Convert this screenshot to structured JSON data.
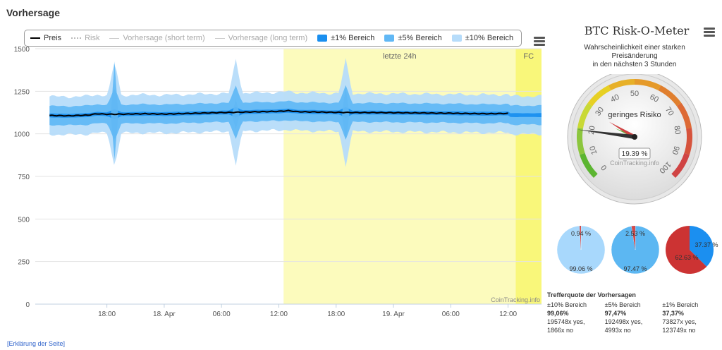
{
  "page": {
    "title": "Vorhersage",
    "explain_link": "[Erklärung der Seite]"
  },
  "legend": [
    {
      "label": "Preis",
      "kind": "line",
      "color": "#000000",
      "muted": false
    },
    {
      "label": "Risk",
      "kind": "dot",
      "color": "#bbbbbb",
      "muted": true
    },
    {
      "label": "Vorhersage (short term)",
      "kind": "thin",
      "color": "#cccccc",
      "muted": true
    },
    {
      "label": "Vorhersage (long term)",
      "kind": "thin",
      "color": "#cccccc",
      "muted": true
    },
    {
      "label": "±1% Bereich",
      "kind": "box",
      "color": "#1a8fef",
      "muted": false
    },
    {
      "label": "±5% Bereich",
      "kind": "box",
      "color": "#61b8f5",
      "muted": false
    },
    {
      "label": "±10% Bereich",
      "kind": "box",
      "color": "#b6dcfa",
      "muted": false
    }
  ],
  "chart_data": {
    "type": "area",
    "ylim": [
      0,
      1500
    ],
    "y_ticks": [
      0,
      250,
      500,
      750,
      1000,
      1250,
      1500
    ],
    "x_ticks": [
      "18:00",
      "18. Apr",
      "06:00",
      "12:00",
      "18:00",
      "19. Apr",
      "06:00",
      "12:00"
    ],
    "x_tick_hours": [
      6,
      12,
      18,
      24,
      30,
      36,
      42,
      48
    ],
    "x_range_hours": [
      -1.5,
      51.5
    ],
    "price_end_hour": 48,
    "highlight_regions": [
      {
        "label": "letzte 24h",
        "from_hour": 24.5,
        "to_hour": 48.8,
        "color": "#fcfbbd"
      },
      {
        "label": "FC",
        "from_hour": 48.8,
        "to_hour": 51.5,
        "color": "#f9f77a"
      }
    ],
    "price": {
      "name": "Preis",
      "hours": [
        0,
        2,
        4,
        5,
        6,
        8,
        10,
        12,
        14,
        16,
        18,
        20,
        22,
        24,
        25,
        26,
        28,
        30,
        32,
        34,
        36,
        38,
        40,
        42,
        44,
        46,
        48
      ],
      "values": [
        1108,
        1106,
        1110,
        1118,
        1115,
        1116,
        1118,
        1116,
        1119,
        1122,
        1125,
        1127,
        1130,
        1132,
        1136,
        1130,
        1128,
        1126,
        1125,
        1125,
        1124,
        1123,
        1122,
        1121,
        1119,
        1118,
        1120
      ]
    },
    "bands": [
      {
        "name": "±10% Bereich",
        "pct": 10,
        "color": "#b6dcfa"
      },
      {
        "name": "±5% Bereich",
        "pct": 5,
        "color": "#61b8f5"
      },
      {
        "name": "±1% Bereich",
        "pct": 1,
        "color": "#1a8fef"
      }
    ],
    "spikes": [
      {
        "hour": 6.8,
        "high": 1425,
        "low": 850
      },
      {
        "hour": 31,
        "high": 1270,
        "low": 970
      },
      {
        "hour": 19.5,
        "high": 1200,
        "low": 1030
      }
    ],
    "annotations": [
      "letzte 24h",
      "FC"
    ],
    "credit": "CoinTracking.info"
  },
  "gauge": {
    "title": "BTC Risk-O-Meter",
    "subtitle_lines": [
      "Wahrscheinlichkeit einer starken",
      "Preisänderung",
      "in den nächsten 3 Stunden"
    ],
    "value": 19.39,
    "value_label": "19.39 %",
    "risk_label": "geringes Risiko",
    "credit": "CoinTracking.info",
    "min": 0,
    "max": 100,
    "ticks": [
      "0",
      "10",
      "20",
      "30",
      "40",
      "50",
      "60",
      "70",
      "80",
      "90",
      "100"
    ],
    "bands": [
      {
        "from": 0,
        "to": 10,
        "color": "#5cb531"
      },
      {
        "from": 10,
        "to": 20,
        "color": "#8cc63e"
      },
      {
        "from": 20,
        "to": 30,
        "color": "#c9d936"
      },
      {
        "from": 30,
        "to": 40,
        "color": "#e7d024"
      },
      {
        "from": 40,
        "to": 50,
        "color": "#e7b028"
      },
      {
        "from": 50,
        "to": 60,
        "color": "#e59a2a"
      },
      {
        "from": 60,
        "to": 70,
        "color": "#e07f2e"
      },
      {
        "from": 70,
        "to": 80,
        "color": "#dd6a35"
      },
      {
        "from": 80,
        "to": 90,
        "color": "#d6533c"
      },
      {
        "from": 90,
        "to": 100,
        "color": "#d04444"
      }
    ]
  },
  "pies": [
    {
      "hit": 99.06,
      "miss": 0.94,
      "hit_label": "99.06 %",
      "miss_label": "0.94 %",
      "hit_color": "#a8d8fc",
      "miss_color": "#d24a4a"
    },
    {
      "hit": 97.47,
      "miss": 2.53,
      "hit_label": "97.47 %",
      "miss_label": "2.53 %",
      "hit_color": "#5cb7f2",
      "miss_color": "#d24a4a"
    },
    {
      "hit": 37.37,
      "miss": 62.63,
      "hit_label": "37.37 %",
      "miss_label": "62.63 %",
      "hit_color": "#1b8ff0",
      "miss_color": "#cc3333"
    }
  ],
  "stats": {
    "title": "Trefferquote der Vorhersagen",
    "columns": [
      {
        "header": "±10% Bereich",
        "pct": "99,06%",
        "yes": "195748x yes,",
        "no": "1866x no"
      },
      {
        "header": "±5% Bereich",
        "pct": "97,47%",
        "yes": "192498x yes,",
        "no": "4993x no"
      },
      {
        "header": "±1% Bereich",
        "pct": "37,37%",
        "yes": "73827x yes,",
        "no": "123749x no"
      }
    ]
  }
}
